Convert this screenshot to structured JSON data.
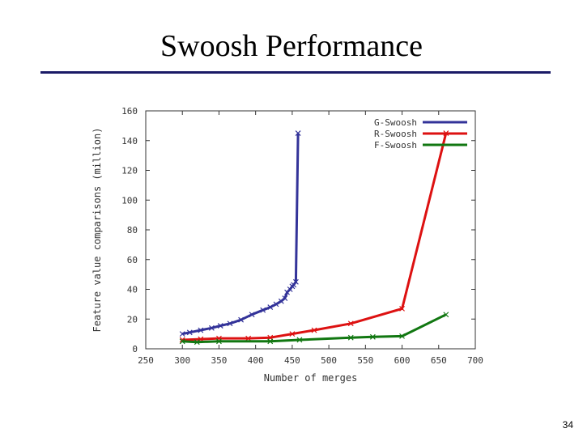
{
  "slide": {
    "title": "Swoosh Performance",
    "page_number": "34"
  },
  "colors": {
    "title_rule": "#1a1a66",
    "G-Swoosh": "#333399",
    "R-Swoosh": "#dd1111",
    "F-Swoosh": "#117711"
  },
  "chart_data": {
    "type": "line",
    "title": "",
    "xlabel": "Number of merges",
    "ylabel": "Feature value comparisons (million)",
    "xlim": [
      250,
      700
    ],
    "ylim": [
      0,
      160
    ],
    "xticks": [
      "250",
      "300",
      "350",
      "400",
      "450",
      "500",
      "550",
      "600",
      "650",
      "700"
    ],
    "yticks": [
      "0",
      "20",
      "40",
      "60",
      "80",
      "100",
      "120",
      "140",
      "160"
    ],
    "legend_position": "top-right",
    "series": [
      {
        "name": "G-Swoosh",
        "points": [
          [
            300,
            10
          ],
          [
            310,
            11
          ],
          [
            325,
            12.5
          ],
          [
            340,
            14
          ],
          [
            352,
            15.5
          ],
          [
            365,
            17
          ],
          [
            380,
            19.5
          ],
          [
            395,
            23
          ],
          [
            410,
            26
          ],
          [
            420,
            28
          ],
          [
            428,
            30
          ],
          [
            435,
            32
          ],
          [
            440,
            34
          ],
          [
            443,
            38
          ],
          [
            447,
            40
          ],
          [
            450,
            42
          ],
          [
            452,
            43
          ],
          [
            455,
            45
          ],
          [
            458,
            145
          ]
        ]
      },
      {
        "name": "R-Swoosh",
        "points": [
          [
            300,
            6
          ],
          [
            325,
            6.5
          ],
          [
            350,
            7
          ],
          [
            390,
            7
          ],
          [
            420,
            7.5
          ],
          [
            450,
            10
          ],
          [
            480,
            12.5
          ],
          [
            530,
            17
          ],
          [
            600,
            27
          ],
          [
            660,
            145
          ]
        ]
      },
      {
        "name": "F-Swoosh",
        "points": [
          [
            300,
            5
          ],
          [
            320,
            4.5
          ],
          [
            350,
            5
          ],
          [
            420,
            5
          ],
          [
            460,
            6
          ],
          [
            530,
            7.5
          ],
          [
            560,
            8
          ],
          [
            600,
            8.5
          ],
          [
            660,
            23
          ]
        ]
      }
    ]
  }
}
